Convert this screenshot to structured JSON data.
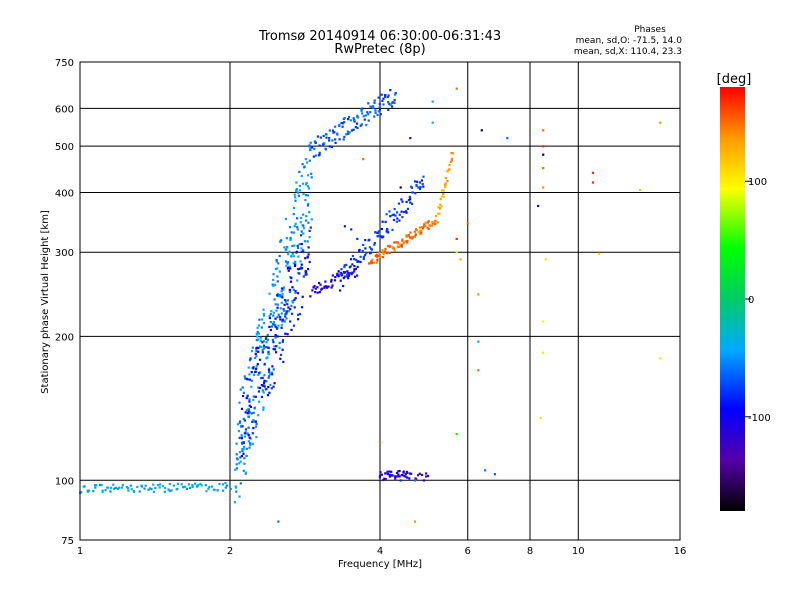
{
  "chart_data": {
    "type": "scatter",
    "title": "Tromsø 20140914 06:30:00-06:31:43",
    "subtitle": "RwPretec (8p)",
    "xlabel": "Frequency [MHz]",
    "ylabel": "Stationary phase Virtual Height [km]",
    "x_scale": "log",
    "y_scale": "log",
    "xlim": [
      1,
      16
    ],
    "ylim": [
      75,
      750
    ],
    "x_ticks": [
      1,
      2,
      4,
      6,
      8,
      10,
      16
    ],
    "x_tick_labels": [
      "1",
      "2",
      "4",
      "6",
      "8",
      "10",
      "16"
    ],
    "x_grid": [
      2,
      4,
      6,
      8,
      10
    ],
    "y_ticks": [
      75,
      100,
      200,
      300,
      400,
      500,
      600,
      750
    ],
    "y_tick_labels": [
      "75",
      "100",
      "200",
      "300",
      "400",
      "500",
      "600",
      "750"
    ],
    "y_grid": [
      100,
      200,
      300,
      400,
      500,
      600
    ],
    "grid": true,
    "phases_box": {
      "title": "Phases",
      "line1": "mean, sd,O: -71.5, 14.0",
      "line2": "mean, sd,X: 110.4, 23.3"
    },
    "colorbar": {
      "label": "[deg]",
      "range": [
        -180,
        180
      ],
      "ticks": [
        100,
        0,
        -100
      ],
      "tick_labels": [
        "100",
        "0",
        "-100"
      ]
    },
    "traces": [
      {
        "x_start": 1.0,
        "x_end": 2.0,
        "y_start": 96,
        "y_end": 97,
        "n": 90,
        "phase": -40,
        "jitter": 0.02
      },
      {
        "x_start": 2.05,
        "x_end": 2.9,
        "y_start": 110,
        "y_end": 420,
        "n": 320,
        "phase": -50,
        "jitter": 0.25
      },
      {
        "x_start": 2.1,
        "x_end": 2.9,
        "y_start": 130,
        "y_end": 300,
        "n": 160,
        "phase": -90,
        "jitter": 0.2
      },
      {
        "x_start": 2.9,
        "x_end": 3.6,
        "y_start": 250,
        "y_end": 275,
        "n": 50,
        "phase": -110,
        "jitter": 0.03
      },
      {
        "x_start": 3.3,
        "x_end": 4.9,
        "y_start": 260,
        "y_end": 420,
        "n": 110,
        "phase": -80,
        "jitter": 0.05
      },
      {
        "x_start": 3.8,
        "x_end": 5.2,
        "y_start": 285,
        "y_end": 350,
        "n": 100,
        "phase": 150,
        "jitter": 0.02
      },
      {
        "x_start": 5.2,
        "x_end": 5.6,
        "y_start": 355,
        "y_end": 480,
        "n": 30,
        "phase": 130,
        "jitter": 0.02
      },
      {
        "x_start": 2.9,
        "x_end": 4.3,
        "y_start": 490,
        "y_end": 640,
        "n": 120,
        "phase": -70,
        "jitter": 0.05
      },
      {
        "x_start": 4.0,
        "x_end": 4.6,
        "y_start": 102,
        "y_end": 103,
        "n": 40,
        "phase": -110,
        "jitter": 0.02
      },
      {
        "x_start": 4.7,
        "x_end": 5.0,
        "y_start": 100,
        "y_end": 103,
        "n": 8,
        "phase": -140,
        "jitter": 0.02
      }
    ],
    "points": [
      {
        "x": 2.5,
        "y": 82,
        "phase": -60
      },
      {
        "x": 4.7,
        "y": 82,
        "phase": 140
      },
      {
        "x": 4.0,
        "y": 120,
        "phase": 150
      },
      {
        "x": 5.7,
        "y": 125,
        "phase": 40
      },
      {
        "x": 6.3,
        "y": 170,
        "phase": 150
      },
      {
        "x": 6.5,
        "y": 105,
        "phase": -60
      },
      {
        "x": 6.3,
        "y": 195,
        "phase": -40
      },
      {
        "x": 6.3,
        "y": 245,
        "phase": 140
      },
      {
        "x": 5.8,
        "y": 290,
        "phase": 130
      },
      {
        "x": 5.7,
        "y": 320,
        "phase": 170
      },
      {
        "x": 5.7,
        "y": 300,
        "phase": 80
      },
      {
        "x": 6.0,
        "y": 345,
        "phase": 150
      },
      {
        "x": 6.4,
        "y": 540,
        "phase": -170
      },
      {
        "x": 7.2,
        "y": 520,
        "phase": -60
      },
      {
        "x": 5.7,
        "y": 660,
        "phase": 150
      },
      {
        "x": 5.1,
        "y": 560,
        "phase": -40
      },
      {
        "x": 5.1,
        "y": 620,
        "phase": -30
      },
      {
        "x": 4.6,
        "y": 520,
        "phase": -120
      },
      {
        "x": 4.2,
        "y": 610,
        "phase": -50
      },
      {
        "x": 3.7,
        "y": 470,
        "phase": 150
      },
      {
        "x": 4.4,
        "y": 410,
        "phase": -170
      },
      {
        "x": 8.3,
        "y": 375,
        "phase": -90
      },
      {
        "x": 8.5,
        "y": 540,
        "phase": 150
      },
      {
        "x": 8.5,
        "y": 500,
        "phase": 170
      },
      {
        "x": 8.5,
        "y": 480,
        "phase": -170
      },
      {
        "x": 8.5,
        "y": 450,
        "phase": 150
      },
      {
        "x": 8.5,
        "y": 410,
        "phase": 140
      },
      {
        "x": 8.6,
        "y": 290,
        "phase": 110
      },
      {
        "x": 8.5,
        "y": 215,
        "phase": 100
      },
      {
        "x": 8.5,
        "y": 185,
        "phase": 110
      },
      {
        "x": 8.4,
        "y": 135,
        "phase": 110
      },
      {
        "x": 10.7,
        "y": 440,
        "phase": 170
      },
      {
        "x": 10.7,
        "y": 420,
        "phase": 170
      },
      {
        "x": 11.0,
        "y": 298,
        "phase": 110
      },
      {
        "x": 13.3,
        "y": 405,
        "phase": 70
      },
      {
        "x": 14.6,
        "y": 560,
        "phase": 140
      },
      {
        "x": 14.6,
        "y": 180,
        "phase": 110
      },
      {
        "x": 6.8,
        "y": 103,
        "phase": -70
      },
      {
        "x": 4.9,
        "y": 100,
        "phase": -100
      },
      {
        "x": 4.7,
        "y": 100,
        "phase": -60
      },
      {
        "x": 4.4,
        "y": 100,
        "phase": -80
      },
      {
        "x": 3.6,
        "y": 320,
        "phase": -80
      },
      {
        "x": 3.4,
        "y": 340,
        "phase": -90
      },
      {
        "x": 3.5,
        "y": 335,
        "phase": -80
      }
    ]
  }
}
